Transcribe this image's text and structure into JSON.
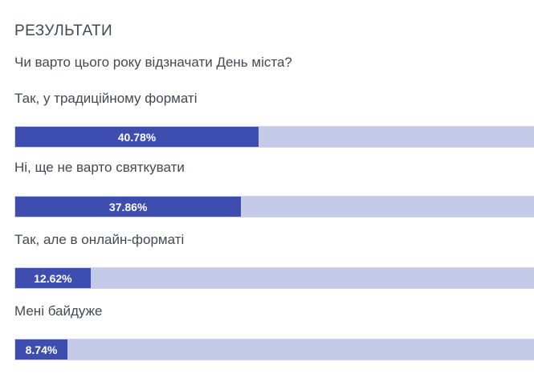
{
  "poll": {
    "heading": "РЕЗУЛЬТАТИ",
    "question": "Чи варто цього року відзначати День міста?"
  },
  "chart_data": {
    "type": "bar",
    "orientation": "horizontal",
    "title": "РЕЗУЛЬТАТИ",
    "subtitle": "Чи варто цього року відзначати День міста?",
    "categories": [
      "Так, у традиційному форматі",
      "Ні, ще не варто святкувати",
      "Так, але в онлайн-форматі",
      "Мені байдуже"
    ],
    "values": [
      40.78,
      37.86,
      12.62,
      8.74
    ],
    "value_labels": [
      "40.78%",
      "37.86%",
      "12.62%",
      "8.74%"
    ],
    "unit": "%",
    "xlim": [
      0,
      100
    ],
    "grid": false,
    "legend": false,
    "colors": {
      "fill": "#3e4eb0",
      "track": "#c5cae9",
      "track_border": "#ced3f0",
      "value_text": "#ffffff",
      "label_text": "#414a52"
    }
  }
}
